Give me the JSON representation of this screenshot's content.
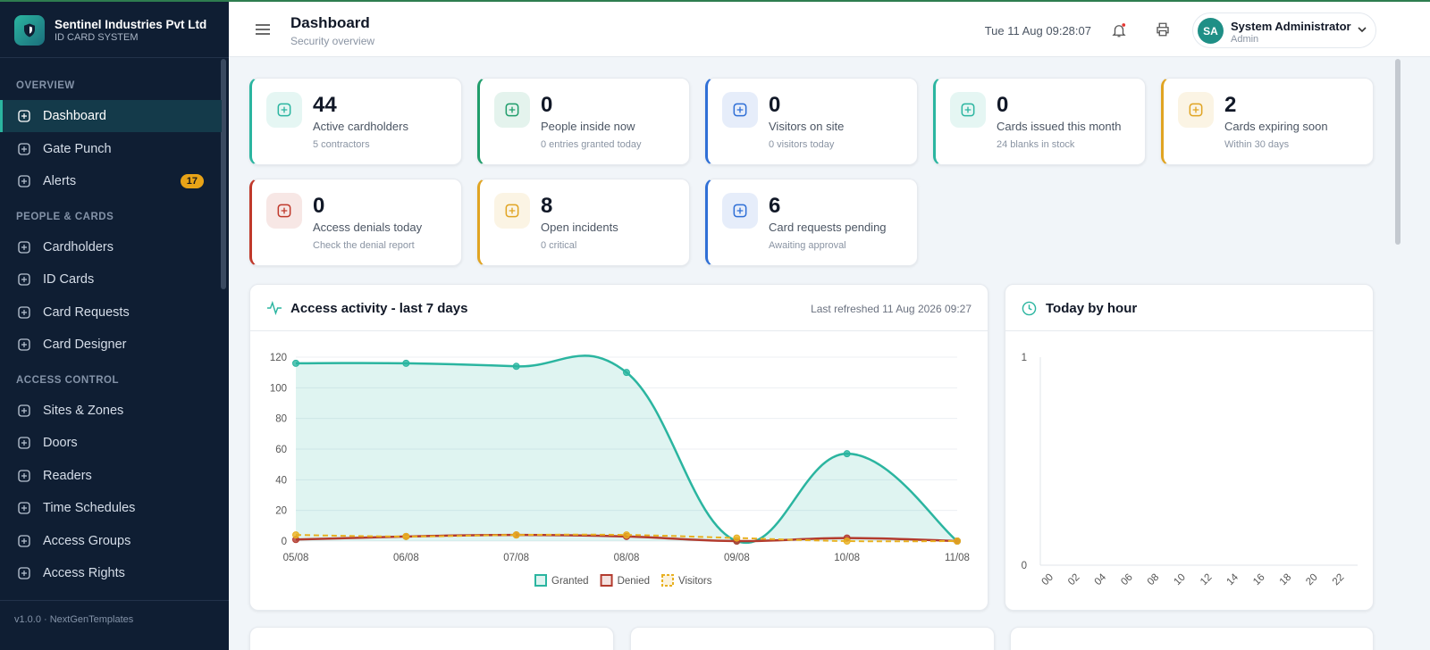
{
  "sidebar": {
    "brand": "Sentinel Industries Pvt Ltd",
    "subtitle": "ID CARD SYSTEM",
    "sections": [
      {
        "title": "OVERVIEW",
        "items": [
          {
            "label": "Dashboard",
            "active": true
          },
          {
            "label": "Gate Punch"
          },
          {
            "label": "Alerts",
            "badge": 17
          }
        ]
      },
      {
        "title": "PEOPLE & CARDS",
        "items": [
          {
            "label": "Cardholders"
          },
          {
            "label": "ID Cards"
          },
          {
            "label": "Card Requests"
          },
          {
            "label": "Card Designer"
          }
        ]
      },
      {
        "title": "ACCESS CONTROL",
        "items": [
          {
            "label": "Sites & Zones"
          },
          {
            "label": "Doors"
          },
          {
            "label": "Readers"
          },
          {
            "label": "Time Schedules"
          },
          {
            "label": "Access Groups"
          },
          {
            "label": "Access Rights"
          }
        ]
      }
    ],
    "footer": "v1.0.0 · NextGenTemplates"
  },
  "header": {
    "title": "Dashboard",
    "subtitle": "Security overview",
    "datetime": "Tue 11 Aug 09:28:07",
    "user": {
      "initials": "SA",
      "name": "System Administrator",
      "role": "Admin"
    }
  },
  "stats": [
    {
      "value": 44,
      "label": "Active cardholders",
      "note": "5 contractors",
      "color": "#2bb5a0"
    },
    {
      "value": 0,
      "label": "People inside now",
      "note": "0 entries granted today",
      "color": "#1f9d6b"
    },
    {
      "value": 0,
      "label": "Visitors on site",
      "note": "0 visitors today",
      "color": "#2f6fd6"
    },
    {
      "value": 0,
      "label": "Cards issued this month",
      "note": "24 blanks in stock",
      "color": "#2bb5a0"
    },
    {
      "value": 2,
      "label": "Cards expiring soon",
      "note": "Within 30 days",
      "color": "#e0a422"
    },
    {
      "value": 0,
      "label": "Access denials today",
      "note": "Check the denial report",
      "color": "#c0392b"
    },
    {
      "value": 8,
      "label": "Open incidents",
      "note": "0 critical",
      "color": "#e0a422"
    },
    {
      "value": 6,
      "label": "Card requests pending",
      "note": "Awaiting approval",
      "color": "#2f6fd6"
    }
  ],
  "activity_chart": {
    "type": "line",
    "title": "Access activity - last 7 days",
    "note": "Last refreshed 11 Aug 2026 09:27",
    "categories": [
      "05/08",
      "06/08",
      "07/08",
      "08/08",
      "09/08",
      "10/08",
      "11/08"
    ],
    "series": [
      {
        "name": "Granted",
        "color": "#2bb5a0",
        "fill": true,
        "values": [
          116,
          116,
          114,
          110,
          0,
          57,
          0
        ]
      },
      {
        "name": "Denied",
        "color": "#b33b2e",
        "values": [
          1,
          3,
          4,
          3,
          0,
          2,
          0
        ]
      },
      {
        "name": "Visitors",
        "color": "#e8b020",
        "dashed": true,
        "values": [
          4,
          3,
          4,
          4,
          2,
          0,
          0
        ]
      }
    ],
    "ylim": [
      0,
      120
    ],
    "yticks": [
      0,
      20,
      40,
      60,
      80,
      100,
      120
    ],
    "grid": true
  },
  "hourly_chart": {
    "type": "bar",
    "title": "Today by hour",
    "categories": [
      "00",
      "02",
      "04",
      "06",
      "08",
      "10",
      "12",
      "14",
      "16",
      "18",
      "20",
      "22"
    ],
    "values": [
      0,
      0,
      0,
      0,
      0,
      0,
      0,
      0,
      0,
      0,
      0,
      0
    ],
    "color": "#2bb5a0",
    "ylim": [
      0,
      1
    ],
    "yticks": [
      0,
      1
    ],
    "grid": false
  }
}
